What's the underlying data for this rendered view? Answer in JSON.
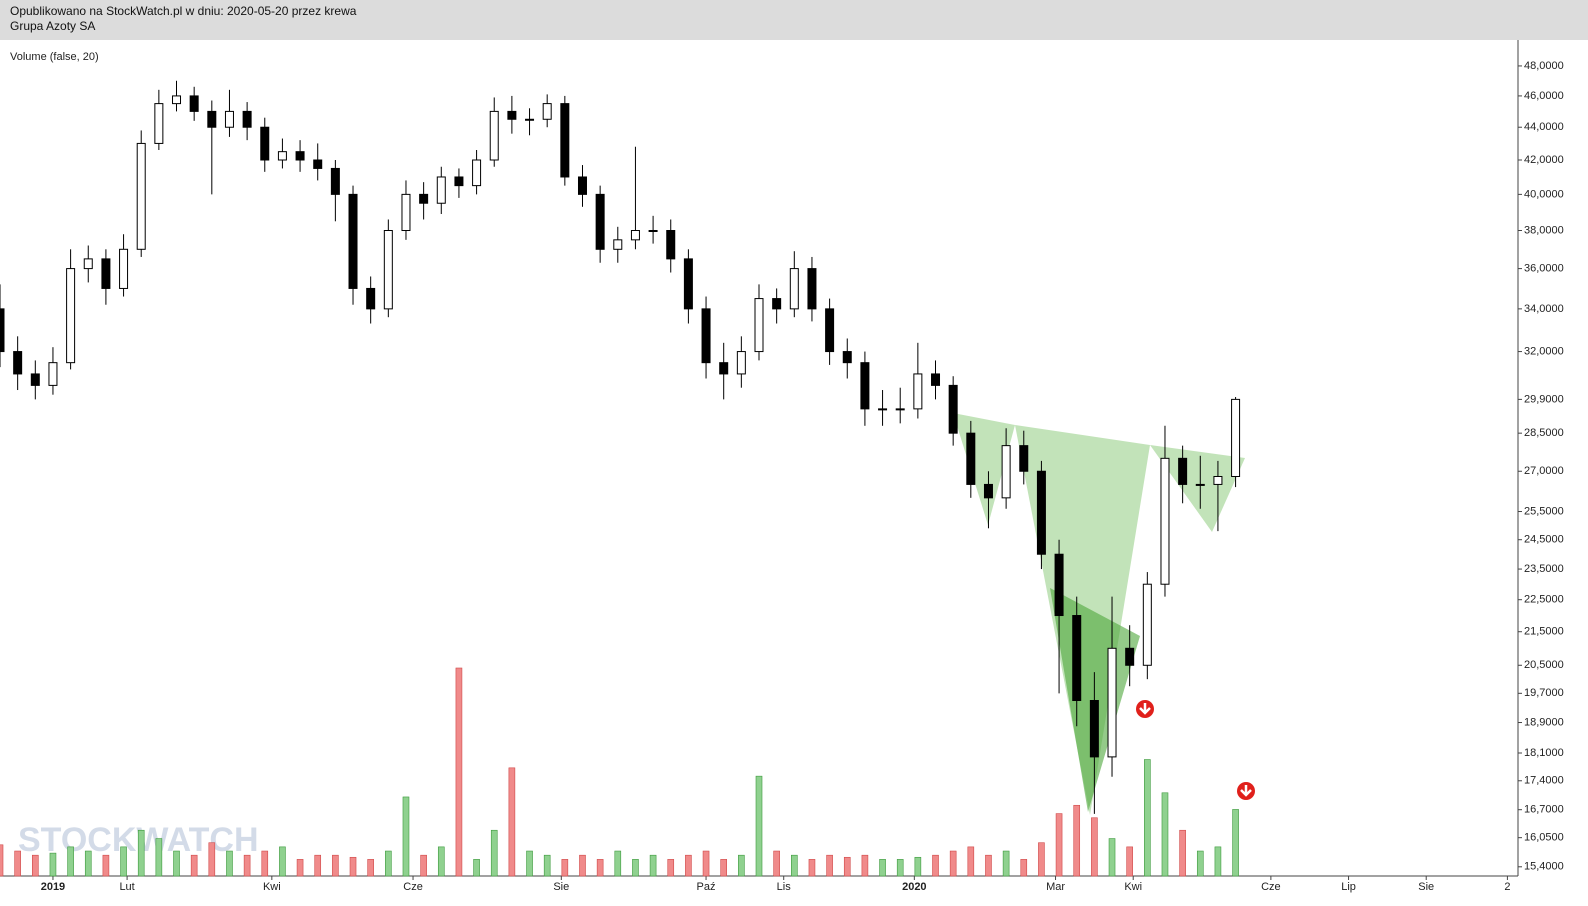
{
  "header": {
    "published": "Opublikowano na StockWatch.pl w dniu: 2020-05-20 przez krewa",
    "instrument": "Grupa Azoty SA"
  },
  "watermark": "STOCKWATCH",
  "chart_data": {
    "type": "candlestick",
    "indicator_label": "Volume (false, 20)",
    "log_scale": true,
    "up_color": "#5cb85c",
    "down_color": "#000000",
    "volume_up_color": "#8fd18f",
    "volume_down_color": "#f08a8a",
    "ylim": [
      15.2,
      49.8
    ],
    "xlim": [
      0,
      430
    ],
    "y2lim": [
      0,
      100
    ],
    "yticks": [
      {
        "value": 48,
        "label": "48,0000"
      },
      {
        "value": 46,
        "label": "46,0000"
      },
      {
        "value": 44,
        "label": "44,0000"
      },
      {
        "value": 42,
        "label": "42,0000"
      },
      {
        "value": 40,
        "label": "40,0000"
      },
      {
        "value": 38,
        "label": "38,0000"
      },
      {
        "value": 36,
        "label": "36,0000"
      },
      {
        "value": 34,
        "label": "34,0000"
      },
      {
        "value": 32,
        "label": "32,0000"
      },
      {
        "value": 29.9,
        "label": "29,9000"
      },
      {
        "value": 28.5,
        "label": "28,5000"
      },
      {
        "value": 27,
        "label": "27,0000"
      },
      {
        "value": 25.5,
        "label": "25,5000"
      },
      {
        "value": 24.5,
        "label": "24,5000"
      },
      {
        "value": 23.5,
        "label": "23,5000"
      },
      {
        "value": 22.5,
        "label": "22,5000"
      },
      {
        "value": 21.5,
        "label": "21,5000"
      },
      {
        "value": 20.5,
        "label": "20,5000"
      },
      {
        "value": 19.7,
        "label": "19,7000"
      },
      {
        "value": 18.9,
        "label": "18,9000"
      },
      {
        "value": 18.1,
        "label": "18,1000"
      },
      {
        "value": 17.4,
        "label": "17,4000"
      },
      {
        "value": 16.7,
        "label": "16,7000"
      },
      {
        "value": 16.05,
        "label": "16,0500"
      },
      {
        "value": 15.4,
        "label": "15,4000"
      }
    ],
    "xticks": [
      {
        "value": 15,
        "label": "2019"
      },
      {
        "value": 36,
        "label": "Lut"
      },
      {
        "value": 77,
        "label": "Kwi"
      },
      {
        "value": 117,
        "label": "Cze"
      },
      {
        "value": 159,
        "label": "Sie"
      },
      {
        "value": 200,
        "label": "Paź"
      },
      {
        "value": 222,
        "label": "Lis"
      },
      {
        "value": 259,
        "label": "2020"
      },
      {
        "value": 299,
        "label": "Mar"
      },
      {
        "value": 321,
        "label": "Kwi"
      },
      {
        "value": 360,
        "label": "Cze"
      },
      {
        "value": 382,
        "label": "Lip"
      },
      {
        "value": 404,
        "label": "Sie"
      },
      {
        "value": 427,
        "label": "2"
      }
    ],
    "x": [
      0,
      5,
      10,
      15,
      20,
      25,
      30,
      35,
      40,
      45,
      50,
      55,
      60,
      65,
      70,
      75,
      80,
      85,
      90,
      95,
      100,
      105,
      110,
      115,
      120,
      125,
      130,
      135,
      140,
      145,
      150,
      155,
      160,
      165,
      170,
      175,
      180,
      185,
      190,
      195,
      200,
      205,
      210,
      215,
      220,
      225,
      230,
      235,
      240,
      245,
      250,
      255,
      260,
      265,
      270,
      275,
      280,
      285,
      290,
      295,
      300,
      305,
      310,
      315,
      320,
      325,
      330,
      335,
      340,
      345,
      350
    ],
    "open": [
      34,
      32,
      31,
      30.5,
      31.5,
      36,
      36.5,
      35,
      37,
      43,
      45.5,
      46,
      45,
      44,
      45,
      44,
      42,
      42.5,
      42,
      41.5,
      40,
      35,
      34,
      38,
      40,
      39.5,
      41,
      40.5,
      42,
      45,
      44.5,
      44.5,
      45.5,
      41,
      40,
      37,
      37.5,
      38,
      38,
      36.5,
      34,
      31.5,
      31,
      32,
      34.5,
      34,
      36,
      34,
      32,
      31.5,
      29.5,
      29.5,
      29.5,
      31,
      30.5,
      28.5,
      26.5,
      26,
      28,
      27,
      24,
      22,
      19.5,
      18,
      21,
      20.5,
      23,
      27.5,
      26.5,
      26.5,
      26.8
    ],
    "high": [
      35.2,
      32.7,
      31.6,
      32.2,
      37,
      37.2,
      37,
      37.8,
      43.8,
      46.4,
      47,
      46.6,
      45.7,
      46.4,
      45.6,
      44.6,
      43.3,
      43.2,
      43,
      42,
      40.5,
      35.6,
      38.6,
      40.8,
      40.7,
      41.6,
      41.5,
      42.6,
      45.9,
      46,
      45.2,
      46.1,
      46,
      41.7,
      40.5,
      38.2,
      42.8,
      38.8,
      38.6,
      37,
      34.6,
      32.4,
      32.7,
      35.2,
      35,
      36.9,
      36.6,
      34.5,
      32.6,
      32,
      30.3,
      30.4,
      32.4,
      31.6,
      30.9,
      29,
      27,
      28.7,
      28.6,
      27.4,
      24.5,
      22.6,
      20.3,
      22.6,
      21.7,
      23.4,
      28.8,
      28,
      27.6,
      27.4,
      30
    ],
    "low": [
      31.3,
      30.3,
      29.9,
      30.1,
      31.2,
      35.3,
      34.2,
      34.6,
      36.6,
      42.6,
      45,
      44.4,
      40,
      43.4,
      43.2,
      41.3,
      41.5,
      41.3,
      40.8,
      38.5,
      34.2,
      33.3,
      33.6,
      37.5,
      38.6,
      38.9,
      39.8,
      40,
      41.6,
      43.6,
      43.5,
      44,
      40.5,
      39.3,
      36.3,
      36.3,
      37,
      37.3,
      35.8,
      33.3,
      30.8,
      29.9,
      30.4,
      31.6,
      33.3,
      33.6,
      33.4,
      31.4,
      30.8,
      28.8,
      28.8,
      28.9,
      29.1,
      29.9,
      28,
      26,
      24.9,
      25.6,
      26.5,
      23.5,
      19.7,
      18.8,
      16.6,
      17.5,
      19.9,
      20.1,
      22.6,
      25.8,
      25.6,
      24.8,
      26.4
    ],
    "close": [
      32,
      31,
      30.5,
      31.5,
      36,
      36.5,
      35,
      37,
      43,
      45.5,
      46,
      45,
      44,
      45,
      44,
      42,
      42.5,
      42,
      41.5,
      40,
      35,
      34,
      38,
      40,
      39.5,
      41,
      40.5,
      42,
      45,
      44.5,
      44.5,
      45.5,
      41,
      40,
      37,
      37.5,
      38,
      38,
      36.5,
      34,
      31.5,
      31,
      32,
      34.5,
      34,
      36,
      34,
      32,
      31.5,
      29.5,
      29.5,
      29.5,
      31,
      30.5,
      28.5,
      26.5,
      26,
      28,
      27,
      24,
      22,
      19.5,
      18,
      21,
      20.5,
      23,
      27.5,
      26.5,
      26.5,
      26.8,
      29.9
    ],
    "volume": [
      15,
      12,
      10,
      11,
      14,
      12,
      10,
      14,
      22,
      18,
      12,
      10,
      16,
      12,
      10,
      12,
      14,
      8,
      10,
      10,
      9,
      8,
      12,
      38,
      10,
      14,
      100,
      8,
      22,
      52,
      12,
      10,
      8,
      10,
      8,
      12,
      8,
      10,
      8,
      10,
      12,
      8,
      10,
      48,
      12,
      10,
      8,
      10,
      9,
      10,
      8,
      8,
      9,
      10,
      12,
      14,
      10,
      12,
      8,
      16,
      30,
      34,
      28,
      18,
      14,
      56,
      40,
      22,
      12,
      14,
      32
    ]
  }
}
